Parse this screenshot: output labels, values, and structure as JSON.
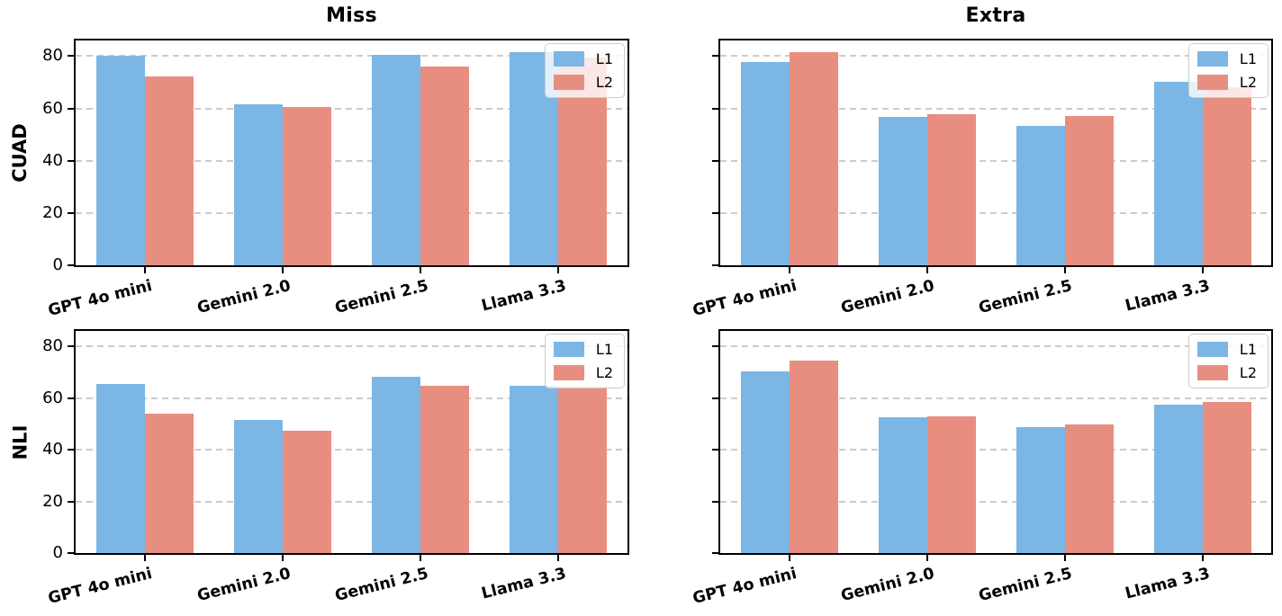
{
  "layout": {
    "col_titles": [
      "Miss",
      "Extra"
    ],
    "row_labels": [
      "CUAD",
      "NLI"
    ]
  },
  "legend": {
    "position": "upper right",
    "items": [
      {
        "label": "L1"
      },
      {
        "label": "L2"
      }
    ]
  },
  "colors": {
    "l1": "#7CB6E4",
    "l2": "#E88E80",
    "grid": "#cccccc",
    "spine": "#000000",
    "text": "#000000",
    "background": "#ffffff"
  },
  "axes": {
    "ylim": [
      0,
      86
    ],
    "yticks": [
      0,
      20,
      40,
      60,
      80
    ],
    "grid": "dashed-horizontal",
    "xtick_label_rotation_deg": 14
  },
  "chart_data": [
    {
      "type": "bar",
      "title": "Miss",
      "row_label": "CUAD",
      "categories": [
        "GPT 4o mini",
        "Gemini 2.0",
        "Gemini 2.5",
        "Llama 3.3"
      ],
      "series": [
        {
          "name": "L1",
          "values": [
            80.2,
            61.5,
            80.6,
            81.7
          ]
        },
        {
          "name": "L2",
          "values": [
            72.2,
            60.4,
            76.0,
            79.3
          ]
        }
      ],
      "ylim": [
        0,
        86
      ],
      "yticks": [
        0,
        20,
        40,
        60,
        80
      ],
      "show_ytick_labels": true,
      "legend_position": "upper right"
    },
    {
      "type": "bar",
      "title": "Extra",
      "row_label": "CUAD",
      "categories": [
        "GPT 4o mini",
        "Gemini 2.0",
        "Gemini 2.5",
        "Llama 3.3"
      ],
      "series": [
        {
          "name": "L1",
          "values": [
            77.8,
            56.9,
            53.3,
            70.2
          ]
        },
        {
          "name": "L2",
          "values": [
            81.4,
            57.9,
            57.1,
            68.2
          ]
        }
      ],
      "ylim": [
        0,
        86
      ],
      "yticks": [
        0,
        20,
        40,
        60,
        80
      ],
      "show_ytick_labels": false,
      "legend_position": "upper right"
    },
    {
      "type": "bar",
      "title": "",
      "row_label": "NLI",
      "categories": [
        "GPT 4o mini",
        "Gemini 2.0",
        "Gemini 2.5",
        "Llama 3.3"
      ],
      "series": [
        {
          "name": "L1",
          "values": [
            65.6,
            51.5,
            68.4,
            64.9
          ]
        },
        {
          "name": "L2",
          "values": [
            53.8,
            47.5,
            64.7,
            64.5
          ]
        }
      ],
      "ylim": [
        0,
        86
      ],
      "yticks": [
        0,
        20,
        40,
        60,
        80
      ],
      "show_ytick_labels": true,
      "legend_position": "upper right"
    },
    {
      "type": "bar",
      "title": "",
      "row_label": "NLI",
      "categories": [
        "GPT 4o mini",
        "Gemini 2.0",
        "Gemini 2.5",
        "Llama 3.3"
      ],
      "series": [
        {
          "name": "L1",
          "values": [
            70.4,
            52.7,
            48.7,
            57.5
          ]
        },
        {
          "name": "L2",
          "values": [
            74.6,
            53.1,
            49.8,
            58.5
          ]
        }
      ],
      "ylim": [
        0,
        86
      ],
      "yticks": [
        0,
        20,
        40,
        60,
        80
      ],
      "show_ytick_labels": false,
      "legend_position": "upper right"
    }
  ]
}
